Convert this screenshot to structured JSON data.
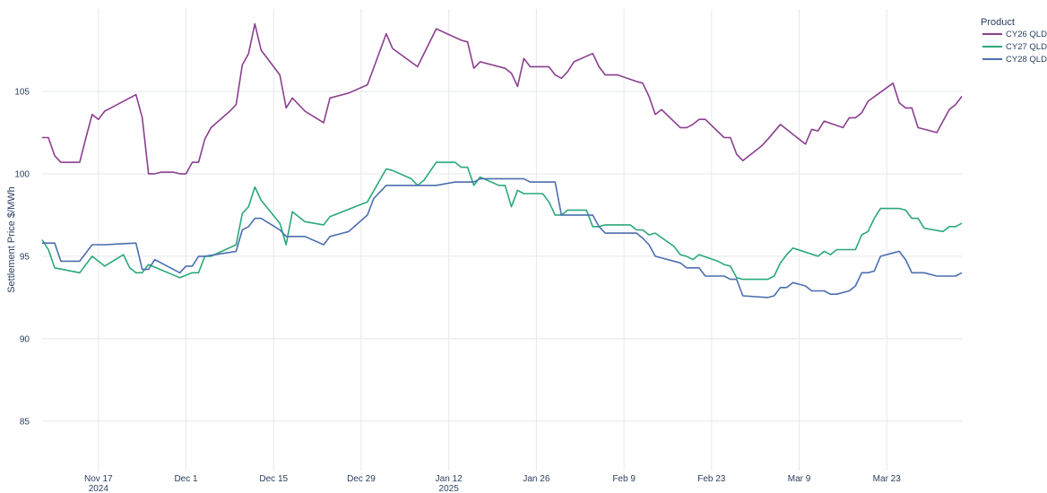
{
  "chart_data": {
    "type": "line",
    "title": "",
    "xlabel": "",
    "ylabel": "Settlement Price $/MWh",
    "ylim": [
      82,
      110
    ],
    "y_ticks": [
      85,
      90,
      95,
      100,
      105
    ],
    "x_range": [
      "2024-11-08",
      "2025-04-04"
    ],
    "x_ticks": [
      {
        "date": "2024-11-17",
        "label": "Nov 17",
        "sublabel": "2024"
      },
      {
        "date": "2024-12-01",
        "label": "Dec 1",
        "sublabel": ""
      },
      {
        "date": "2024-12-15",
        "label": "Dec 15",
        "sublabel": ""
      },
      {
        "date": "2024-12-29",
        "label": "Dec 29",
        "sublabel": ""
      },
      {
        "date": "2025-01-12",
        "label": "Jan 12",
        "sublabel": "2025"
      },
      {
        "date": "2025-01-26",
        "label": "Jan 26",
        "sublabel": ""
      },
      {
        "date": "2025-02-09",
        "label": "Feb 9",
        "sublabel": ""
      },
      {
        "date": "2025-02-23",
        "label": "Feb 23",
        "sublabel": ""
      },
      {
        "date": "2025-03-09",
        "label": "Mar 9",
        "sublabel": ""
      },
      {
        "date": "2025-03-23",
        "label": "Mar 23",
        "sublabel": ""
      }
    ],
    "grid": true,
    "legend_title": "Product",
    "legend_position": "top-right",
    "series": [
      {
        "name": "CY26 QLD",
        "color": "#8b3f8f",
        "points": [
          [
            "2024-11-08",
            102.2
          ],
          [
            "2024-11-09",
            102.2
          ],
          [
            "2024-11-10",
            101.1
          ],
          [
            "2024-11-11",
            100.7
          ],
          [
            "2024-11-14",
            100.7
          ],
          [
            "2024-11-15",
            102.2
          ],
          [
            "2024-11-16",
            103.6
          ],
          [
            "2024-11-17",
            103.3
          ],
          [
            "2024-11-18",
            103.8
          ],
          [
            "2024-11-23",
            104.8
          ],
          [
            "2024-11-24",
            103.4
          ],
          [
            "2024-11-25",
            100.0
          ],
          [
            "2024-11-26",
            100.0
          ],
          [
            "2024-11-27",
            100.1
          ],
          [
            "2024-11-29",
            100.1
          ],
          [
            "2024-11-30",
            100.0
          ],
          [
            "2024-12-01",
            100.0
          ],
          [
            "2024-12-02",
            100.7
          ],
          [
            "2024-12-03",
            100.7
          ],
          [
            "2024-12-04",
            102.1
          ],
          [
            "2024-12-05",
            102.8
          ],
          [
            "2024-12-08",
            103.8
          ],
          [
            "2024-12-09",
            104.2
          ],
          [
            "2024-12-10",
            106.6
          ],
          [
            "2024-12-11",
            107.3
          ],
          [
            "2024-12-12",
            109.1
          ],
          [
            "2024-12-13",
            107.5
          ],
          [
            "2024-12-16",
            106.0
          ],
          [
            "2024-12-17",
            104.0
          ],
          [
            "2024-12-18",
            104.6
          ],
          [
            "2024-12-20",
            103.8
          ],
          [
            "2024-12-23",
            103.1
          ],
          [
            "2024-12-24",
            104.6
          ],
          [
            "2024-12-27",
            104.9
          ],
          [
            "2024-12-30",
            105.4
          ],
          [
            "2025-01-02",
            108.5
          ],
          [
            "2025-01-03",
            107.6
          ],
          [
            "2025-01-07",
            106.5
          ],
          [
            "2025-01-10",
            108.8
          ],
          [
            "2025-01-14",
            108.1
          ],
          [
            "2025-01-15",
            108.0
          ],
          [
            "2025-01-16",
            106.4
          ],
          [
            "2025-01-17",
            106.8
          ],
          [
            "2025-01-21",
            106.4
          ],
          [
            "2025-01-22",
            106.1
          ],
          [
            "2025-01-23",
            105.3
          ],
          [
            "2025-01-24",
            107.0
          ],
          [
            "2025-01-25",
            106.5
          ],
          [
            "2025-01-28",
            106.5
          ],
          [
            "2025-01-29",
            106.0
          ],
          [
            "2025-01-30",
            105.8
          ],
          [
            "2025-01-31",
            106.2
          ],
          [
            "2025-02-01",
            106.8
          ],
          [
            "2025-02-04",
            107.3
          ],
          [
            "2025-02-05",
            106.5
          ],
          [
            "2025-02-06",
            106.0
          ],
          [
            "2025-02-08",
            106.0
          ],
          [
            "2025-02-11",
            105.6
          ],
          [
            "2025-02-12",
            105.5
          ],
          [
            "2025-02-13",
            104.7
          ],
          [
            "2025-02-14",
            103.6
          ],
          [
            "2025-02-15",
            103.9
          ],
          [
            "2025-02-18",
            102.8
          ],
          [
            "2025-02-19",
            102.8
          ],
          [
            "2025-02-20",
            103.0
          ],
          [
            "2025-02-21",
            103.3
          ],
          [
            "2025-02-22",
            103.3
          ],
          [
            "2025-02-25",
            102.2
          ],
          [
            "2025-02-26",
            102.2
          ],
          [
            "2025-02-27",
            101.2
          ],
          [
            "2025-02-28",
            100.8
          ],
          [
            "2025-03-03",
            101.7
          ],
          [
            "2025-03-04",
            102.1
          ],
          [
            "2025-03-06",
            103.0
          ],
          [
            "2025-03-10",
            101.8
          ],
          [
            "2025-03-11",
            102.7
          ],
          [
            "2025-03-12",
            102.6
          ],
          [
            "2025-03-13",
            103.2
          ],
          [
            "2025-03-16",
            102.8
          ],
          [
            "2025-03-17",
            103.4
          ],
          [
            "2025-03-18",
            103.4
          ],
          [
            "2025-03-19",
            103.7
          ],
          [
            "2025-03-20",
            104.4
          ],
          [
            "2025-03-24",
            105.5
          ],
          [
            "2025-03-25",
            104.3
          ],
          [
            "2025-03-26",
            104.0
          ],
          [
            "2025-03-27",
            104.0
          ],
          [
            "2025-03-28",
            102.8
          ],
          [
            "2025-03-31",
            102.5
          ],
          [
            "2025-04-02",
            103.9
          ],
          [
            "2025-04-03",
            104.2
          ],
          [
            "2025-04-04",
            104.7
          ]
        ]
      },
      {
        "name": "CY27 QLD",
        "color": "#2aa87a",
        "points": [
          [
            "2024-11-08",
            96.0
          ],
          [
            "2024-11-09",
            95.4
          ],
          [
            "2024-11-10",
            94.3
          ],
          [
            "2024-11-14",
            94.0
          ],
          [
            "2024-11-16",
            95.0
          ],
          [
            "2024-11-18",
            94.4
          ],
          [
            "2024-11-21",
            95.1
          ],
          [
            "2024-11-22",
            94.3
          ],
          [
            "2024-11-23",
            94.0
          ],
          [
            "2024-11-24",
            94.0
          ],
          [
            "2024-11-25",
            94.5
          ],
          [
            "2024-11-30",
            93.7
          ],
          [
            "2024-12-02",
            94.0
          ],
          [
            "2024-12-03",
            94.0
          ],
          [
            "2024-12-04",
            95.0
          ],
          [
            "2024-12-05",
            95.0
          ],
          [
            "2024-12-09",
            95.7
          ],
          [
            "2024-12-10",
            97.6
          ],
          [
            "2024-12-11",
            98.0
          ],
          [
            "2024-12-12",
            99.2
          ],
          [
            "2024-12-13",
            98.4
          ],
          [
            "2024-12-16",
            97.0
          ],
          [
            "2024-12-17",
            95.7
          ],
          [
            "2024-12-18",
            97.7
          ],
          [
            "2024-12-20",
            97.1
          ],
          [
            "2024-12-23",
            96.9
          ],
          [
            "2024-12-24",
            97.4
          ],
          [
            "2024-12-30",
            98.3
          ],
          [
            "2025-01-02",
            100.3
          ],
          [
            "2025-01-03",
            100.2
          ],
          [
            "2025-01-06",
            99.7
          ],
          [
            "2025-01-07",
            99.3
          ],
          [
            "2025-01-08",
            99.6
          ],
          [
            "2025-01-10",
            100.7
          ],
          [
            "2025-01-13",
            100.7
          ],
          [
            "2025-01-14",
            100.4
          ],
          [
            "2025-01-15",
            100.4
          ],
          [
            "2025-01-16",
            99.3
          ],
          [
            "2025-01-17",
            99.8
          ],
          [
            "2025-01-20",
            99.3
          ],
          [
            "2025-01-21",
            99.3
          ],
          [
            "2025-01-22",
            98.0
          ],
          [
            "2025-01-23",
            99.0
          ],
          [
            "2025-01-24",
            98.8
          ],
          [
            "2025-01-27",
            98.8
          ],
          [
            "2025-01-28",
            98.3
          ],
          [
            "2025-01-29",
            97.5
          ],
          [
            "2025-01-30",
            97.5
          ],
          [
            "2025-01-31",
            97.8
          ],
          [
            "2025-02-03",
            97.8
          ],
          [
            "2025-02-04",
            96.8
          ],
          [
            "2025-02-05",
            96.8
          ],
          [
            "2025-02-06",
            96.9
          ],
          [
            "2025-02-10",
            96.9
          ],
          [
            "2025-02-11",
            96.6
          ],
          [
            "2025-02-12",
            96.6
          ],
          [
            "2025-02-13",
            96.3
          ],
          [
            "2025-02-14",
            96.4
          ],
          [
            "2025-02-17",
            95.6
          ],
          [
            "2025-02-18",
            95.1
          ],
          [
            "2025-02-19",
            95.0
          ],
          [
            "2025-02-20",
            94.8
          ],
          [
            "2025-02-21",
            95.1
          ],
          [
            "2025-02-24",
            94.7
          ],
          [
            "2025-02-25",
            94.5
          ],
          [
            "2025-02-26",
            94.4
          ],
          [
            "2025-02-27",
            93.7
          ],
          [
            "2025-02-28",
            93.6
          ],
          [
            "2025-03-04",
            93.6
          ],
          [
            "2025-03-05",
            93.8
          ],
          [
            "2025-03-06",
            94.6
          ],
          [
            "2025-03-07",
            95.1
          ],
          [
            "2025-03-08",
            95.5
          ],
          [
            "2025-03-12",
            95.0
          ],
          [
            "2025-03-13",
            95.3
          ],
          [
            "2025-03-14",
            95.1
          ],
          [
            "2025-03-15",
            95.4
          ],
          [
            "2025-03-18",
            95.4
          ],
          [
            "2025-03-19",
            96.3
          ],
          [
            "2025-03-20",
            96.5
          ],
          [
            "2025-03-21",
            97.3
          ],
          [
            "2025-03-22",
            97.9
          ],
          [
            "2025-03-25",
            97.9
          ],
          [
            "2025-03-26",
            97.8
          ],
          [
            "2025-03-27",
            97.3
          ],
          [
            "2025-03-28",
            97.3
          ],
          [
            "2025-03-29",
            96.7
          ],
          [
            "2025-04-01",
            96.5
          ],
          [
            "2025-04-02",
            96.8
          ],
          [
            "2025-04-03",
            96.8
          ],
          [
            "2025-04-04",
            97.0
          ]
        ]
      },
      {
        "name": "CY28 QLD",
        "color": "#4a6faf",
        "points": [
          [
            "2024-11-08",
            95.8
          ],
          [
            "2024-11-10",
            95.8
          ],
          [
            "2024-11-11",
            94.7
          ],
          [
            "2024-11-14",
            94.7
          ],
          [
            "2024-11-16",
            95.7
          ],
          [
            "2024-11-18",
            95.7
          ],
          [
            "2024-11-23",
            95.8
          ],
          [
            "2024-11-24",
            94.2
          ],
          [
            "2024-11-25",
            94.2
          ],
          [
            "2024-11-26",
            94.8
          ],
          [
            "2024-11-30",
            94.0
          ],
          [
            "2024-12-01",
            94.4
          ],
          [
            "2024-12-02",
            94.4
          ],
          [
            "2024-12-03",
            95.0
          ],
          [
            "2024-12-04",
            95.0
          ],
          [
            "2024-12-09",
            95.3
          ],
          [
            "2024-12-10",
            96.6
          ],
          [
            "2024-12-11",
            96.8
          ],
          [
            "2024-12-12",
            97.3
          ],
          [
            "2024-12-13",
            97.3
          ],
          [
            "2024-12-16",
            96.6
          ],
          [
            "2024-12-17",
            96.2
          ],
          [
            "2024-12-20",
            96.2
          ],
          [
            "2024-12-23",
            95.7
          ],
          [
            "2024-12-24",
            96.2
          ],
          [
            "2024-12-27",
            96.5
          ],
          [
            "2024-12-30",
            97.5
          ],
          [
            "2024-12-31",
            98.5
          ],
          [
            "2025-01-02",
            99.3
          ],
          [
            "2025-01-10",
            99.3
          ],
          [
            "2025-01-13",
            99.5
          ],
          [
            "2025-01-16",
            99.5
          ],
          [
            "2025-01-17",
            99.7
          ],
          [
            "2025-01-24",
            99.7
          ],
          [
            "2025-01-25",
            99.5
          ],
          [
            "2025-01-29",
            99.5
          ],
          [
            "2025-01-30",
            97.5
          ],
          [
            "2025-02-04",
            97.5
          ],
          [
            "2025-02-05",
            96.8
          ],
          [
            "2025-02-06",
            96.4
          ],
          [
            "2025-02-11",
            96.4
          ],
          [
            "2025-02-12",
            96.1
          ],
          [
            "2025-02-13",
            95.7
          ],
          [
            "2025-02-14",
            95.0
          ],
          [
            "2025-02-18",
            94.6
          ],
          [
            "2025-02-19",
            94.3
          ],
          [
            "2025-02-21",
            94.3
          ],
          [
            "2025-02-22",
            93.8
          ],
          [
            "2025-02-25",
            93.8
          ],
          [
            "2025-02-26",
            93.6
          ],
          [
            "2025-02-27",
            93.6
          ],
          [
            "2025-02-28",
            92.6
          ],
          [
            "2025-03-04",
            92.5
          ],
          [
            "2025-03-05",
            92.6
          ],
          [
            "2025-03-06",
            93.1
          ],
          [
            "2025-03-07",
            93.1
          ],
          [
            "2025-03-08",
            93.4
          ],
          [
            "2025-03-10",
            93.2
          ],
          [
            "2025-03-11",
            92.9
          ],
          [
            "2025-03-13",
            92.9
          ],
          [
            "2025-03-14",
            92.7
          ],
          [
            "2025-03-15",
            92.7
          ],
          [
            "2025-03-17",
            92.9
          ],
          [
            "2025-03-18",
            93.2
          ],
          [
            "2025-03-19",
            94.0
          ],
          [
            "2025-03-20",
            94.0
          ],
          [
            "2025-03-21",
            94.1
          ],
          [
            "2025-03-22",
            95.0
          ],
          [
            "2025-03-24",
            95.2
          ],
          [
            "2025-03-25",
            95.3
          ],
          [
            "2025-03-26",
            94.8
          ],
          [
            "2025-03-27",
            94.0
          ],
          [
            "2025-03-29",
            94.0
          ],
          [
            "2025-03-31",
            93.8
          ],
          [
            "2025-04-03",
            93.8
          ],
          [
            "2025-04-04",
            94.0
          ]
        ]
      }
    ]
  },
  "axis_color": "#2a3f5f",
  "grid_color": "#e5e8ee"
}
